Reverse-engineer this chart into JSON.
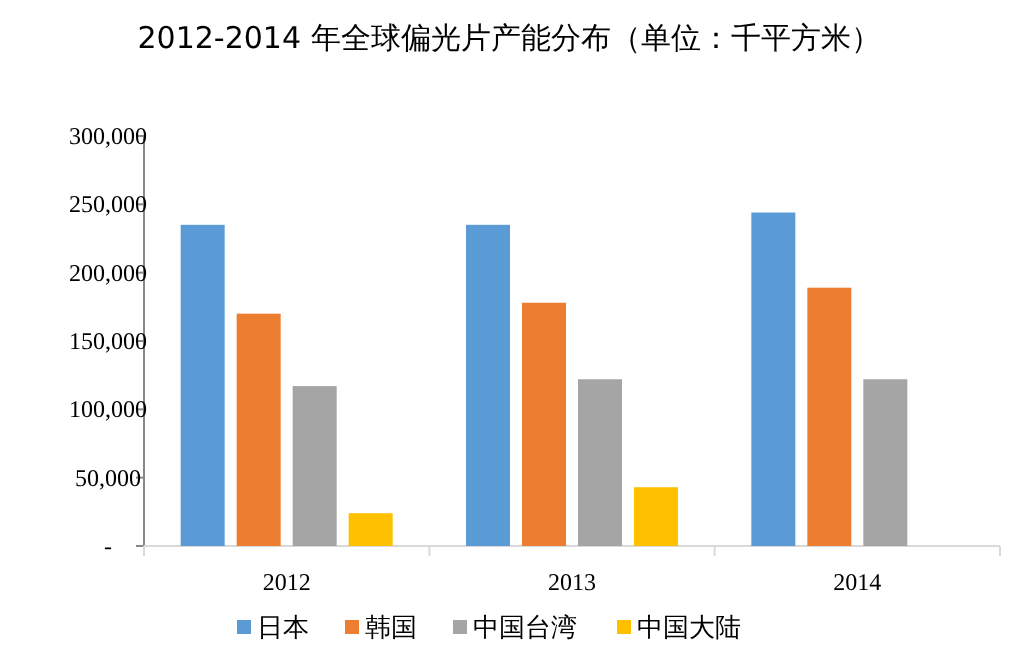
{
  "chart_data": {
    "type": "bar",
    "title": "2012-2014 年全球偏光片产能分布（单位：千平方米）",
    "categories": [
      "2012",
      "2013",
      "2014"
    ],
    "series": [
      {
        "name": "日本",
        "color": "#5b9bd5",
        "values": [
          235000,
          235000,
          244000
        ]
      },
      {
        "name": "韩国",
        "color": "#ed7d31",
        "values": [
          170000,
          178000,
          189000
        ]
      },
      {
        "name": "中国台湾",
        "color": "#a5a5a5",
        "values": [
          117000,
          122000,
          122000
        ]
      },
      {
        "name": "中国大陆",
        "color": "#ffc000",
        "values": [
          24000,
          43000,
          null
        ]
      }
    ],
    "ylim": [
      0,
      300000
    ],
    "yticks": [
      {
        "value": 0,
        "label": "-"
      },
      {
        "value": 50000,
        "label": "50,000"
      },
      {
        "value": 100000,
        "label": "100,000"
      },
      {
        "value": 150000,
        "label": "150,000"
      },
      {
        "value": 200000,
        "label": "200,000"
      },
      {
        "value": 250000,
        "label": "250,000"
      },
      {
        "value": 300000,
        "label": "300,000"
      }
    ],
    "grid": false,
    "legend": "bottom"
  }
}
